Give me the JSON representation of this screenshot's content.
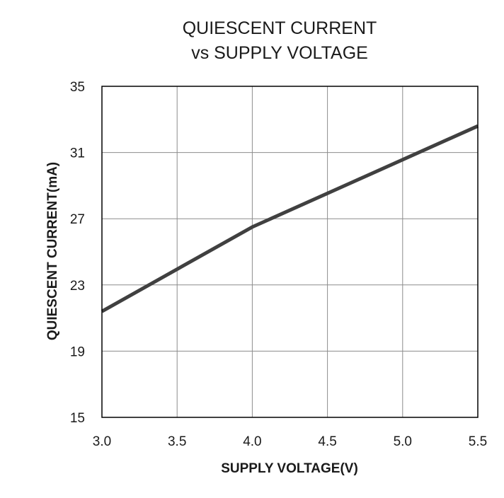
{
  "chart_data": {
    "type": "line",
    "title": "QUIESCENT CURRENT",
    "subtitle": "vs SUPPLY VOLTAGE",
    "xlabel": "SUPPLY VOLTAGE(V)",
    "ylabel": "QUIESCENT CURRENT(mA)",
    "xlim": [
      3.0,
      5.5
    ],
    "ylim": [
      15,
      35
    ],
    "x_ticks": [
      "3.0",
      "3.5",
      "4.0",
      "4.5",
      "5.0",
      "5.5"
    ],
    "y_ticks": [
      "15",
      "19",
      "23",
      "27",
      "31",
      "35"
    ],
    "grid": true,
    "legend": "none",
    "series": [
      {
        "x": [
          3.0,
          4.0,
          5.5
        ],
        "y": [
          21.4,
          26.5,
          32.6
        ],
        "color": "#404040"
      }
    ]
  }
}
